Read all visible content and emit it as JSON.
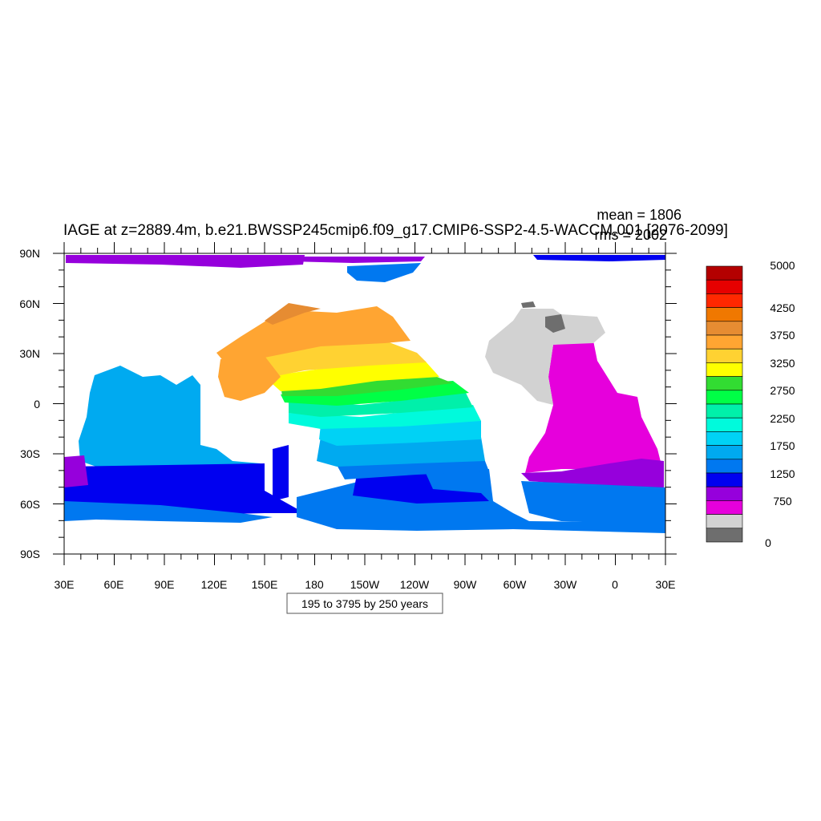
{
  "title": "IAGE at z=2889.4m, b.e21.BWSSP245cmip6.f09_g17.CMIP6-SSP2-4.5-WACCM.001 [2076-2099]",
  "stats": {
    "mean": "mean = 1806",
    "rms": "rms = 2002"
  },
  "info_box": "195 to 3795 by 250 years",
  "lat_labels": [
    "90N",
    "60N",
    "30N",
    "0",
    "30S",
    "60S",
    "90S"
  ],
  "lon_labels": [
    "30E",
    "60E",
    "90E",
    "120E",
    "150E",
    "180",
    "150W",
    "120W",
    "90W",
    "60W",
    "30W",
    "0",
    "30E"
  ],
  "colorbar": {
    "colors_top_to_bottom": [
      "#b40000",
      "#e60000",
      "#ff2800",
      "#f07800",
      "#e68c32",
      "#ffa532",
      "#ffd232",
      "#ffff00",
      "#32dc32",
      "#00ff46",
      "#00f0aa",
      "#00fadc",
      "#00d2f5",
      "#00aaf0",
      "#0078f0",
      "#0000f0",
      "#9600dc",
      "#e600dc",
      "#d2d2d2",
      "#6e6e6e"
    ],
    "labels": [
      "5000",
      "4250",
      "3750",
      "3250",
      "2750",
      "2250",
      "1750",
      "1250",
      "750",
      "0"
    ]
  },
  "land_color": "#ffffff"
}
